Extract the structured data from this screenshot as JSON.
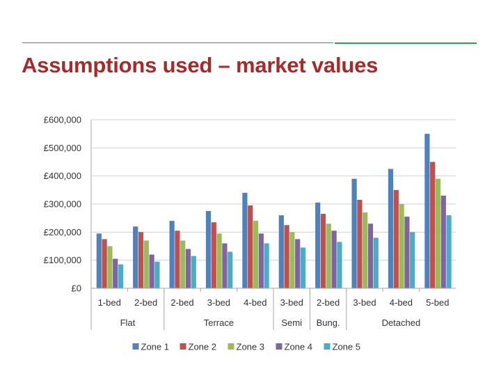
{
  "slide": {
    "title": "Assumptions used – market values"
  },
  "chart_data": {
    "type": "bar",
    "y_tick_labels": [
      "£0",
      "£100,000",
      "£200,000",
      "£300,000",
      "£400,000",
      "£500,000",
      "£600,000"
    ],
    "ylim": [
      0,
      600000
    ],
    "y_step": 100000,
    "grid": true,
    "legend_position": "bottom",
    "categories": [
      "1-bed",
      "2-bed",
      "2-bed",
      "3-bed",
      "4-bed",
      "3-bed",
      "2-bed",
      "3-bed",
      "4-bed",
      "5-bed"
    ],
    "groups": [
      {
        "label": "Flat",
        "span": 2
      },
      {
        "label": "Terrace",
        "span": 3
      },
      {
        "label": "Semi",
        "span": 1
      },
      {
        "label": "Bung.",
        "span": 1
      },
      {
        "label": "Detached",
        "span": 3
      }
    ],
    "series": [
      {
        "name": "Zone 1",
        "color": "#4f81bd",
        "values": [
          195000,
          220000,
          240000,
          275000,
          340000,
          260000,
          305000,
          390000,
          425000,
          550000
        ]
      },
      {
        "name": "Zone 2",
        "color": "#c0504d",
        "values": [
          175000,
          200000,
          205000,
          235000,
          295000,
          225000,
          265000,
          315000,
          350000,
          450000
        ]
      },
      {
        "name": "Zone 3",
        "color": "#9bbb59",
        "values": [
          150000,
          170000,
          170000,
          195000,
          240000,
          200000,
          230000,
          270000,
          300000,
          390000
        ]
      },
      {
        "name": "Zone 4",
        "color": "#8064a2",
        "values": [
          105000,
          120000,
          140000,
          160000,
          195000,
          175000,
          205000,
          230000,
          255000,
          330000
        ]
      },
      {
        "name": "Zone 5",
        "color": "#4bacc6",
        "values": [
          85000,
          95000,
          115000,
          130000,
          160000,
          145000,
          165000,
          180000,
          200000,
          260000
        ]
      }
    ]
  }
}
